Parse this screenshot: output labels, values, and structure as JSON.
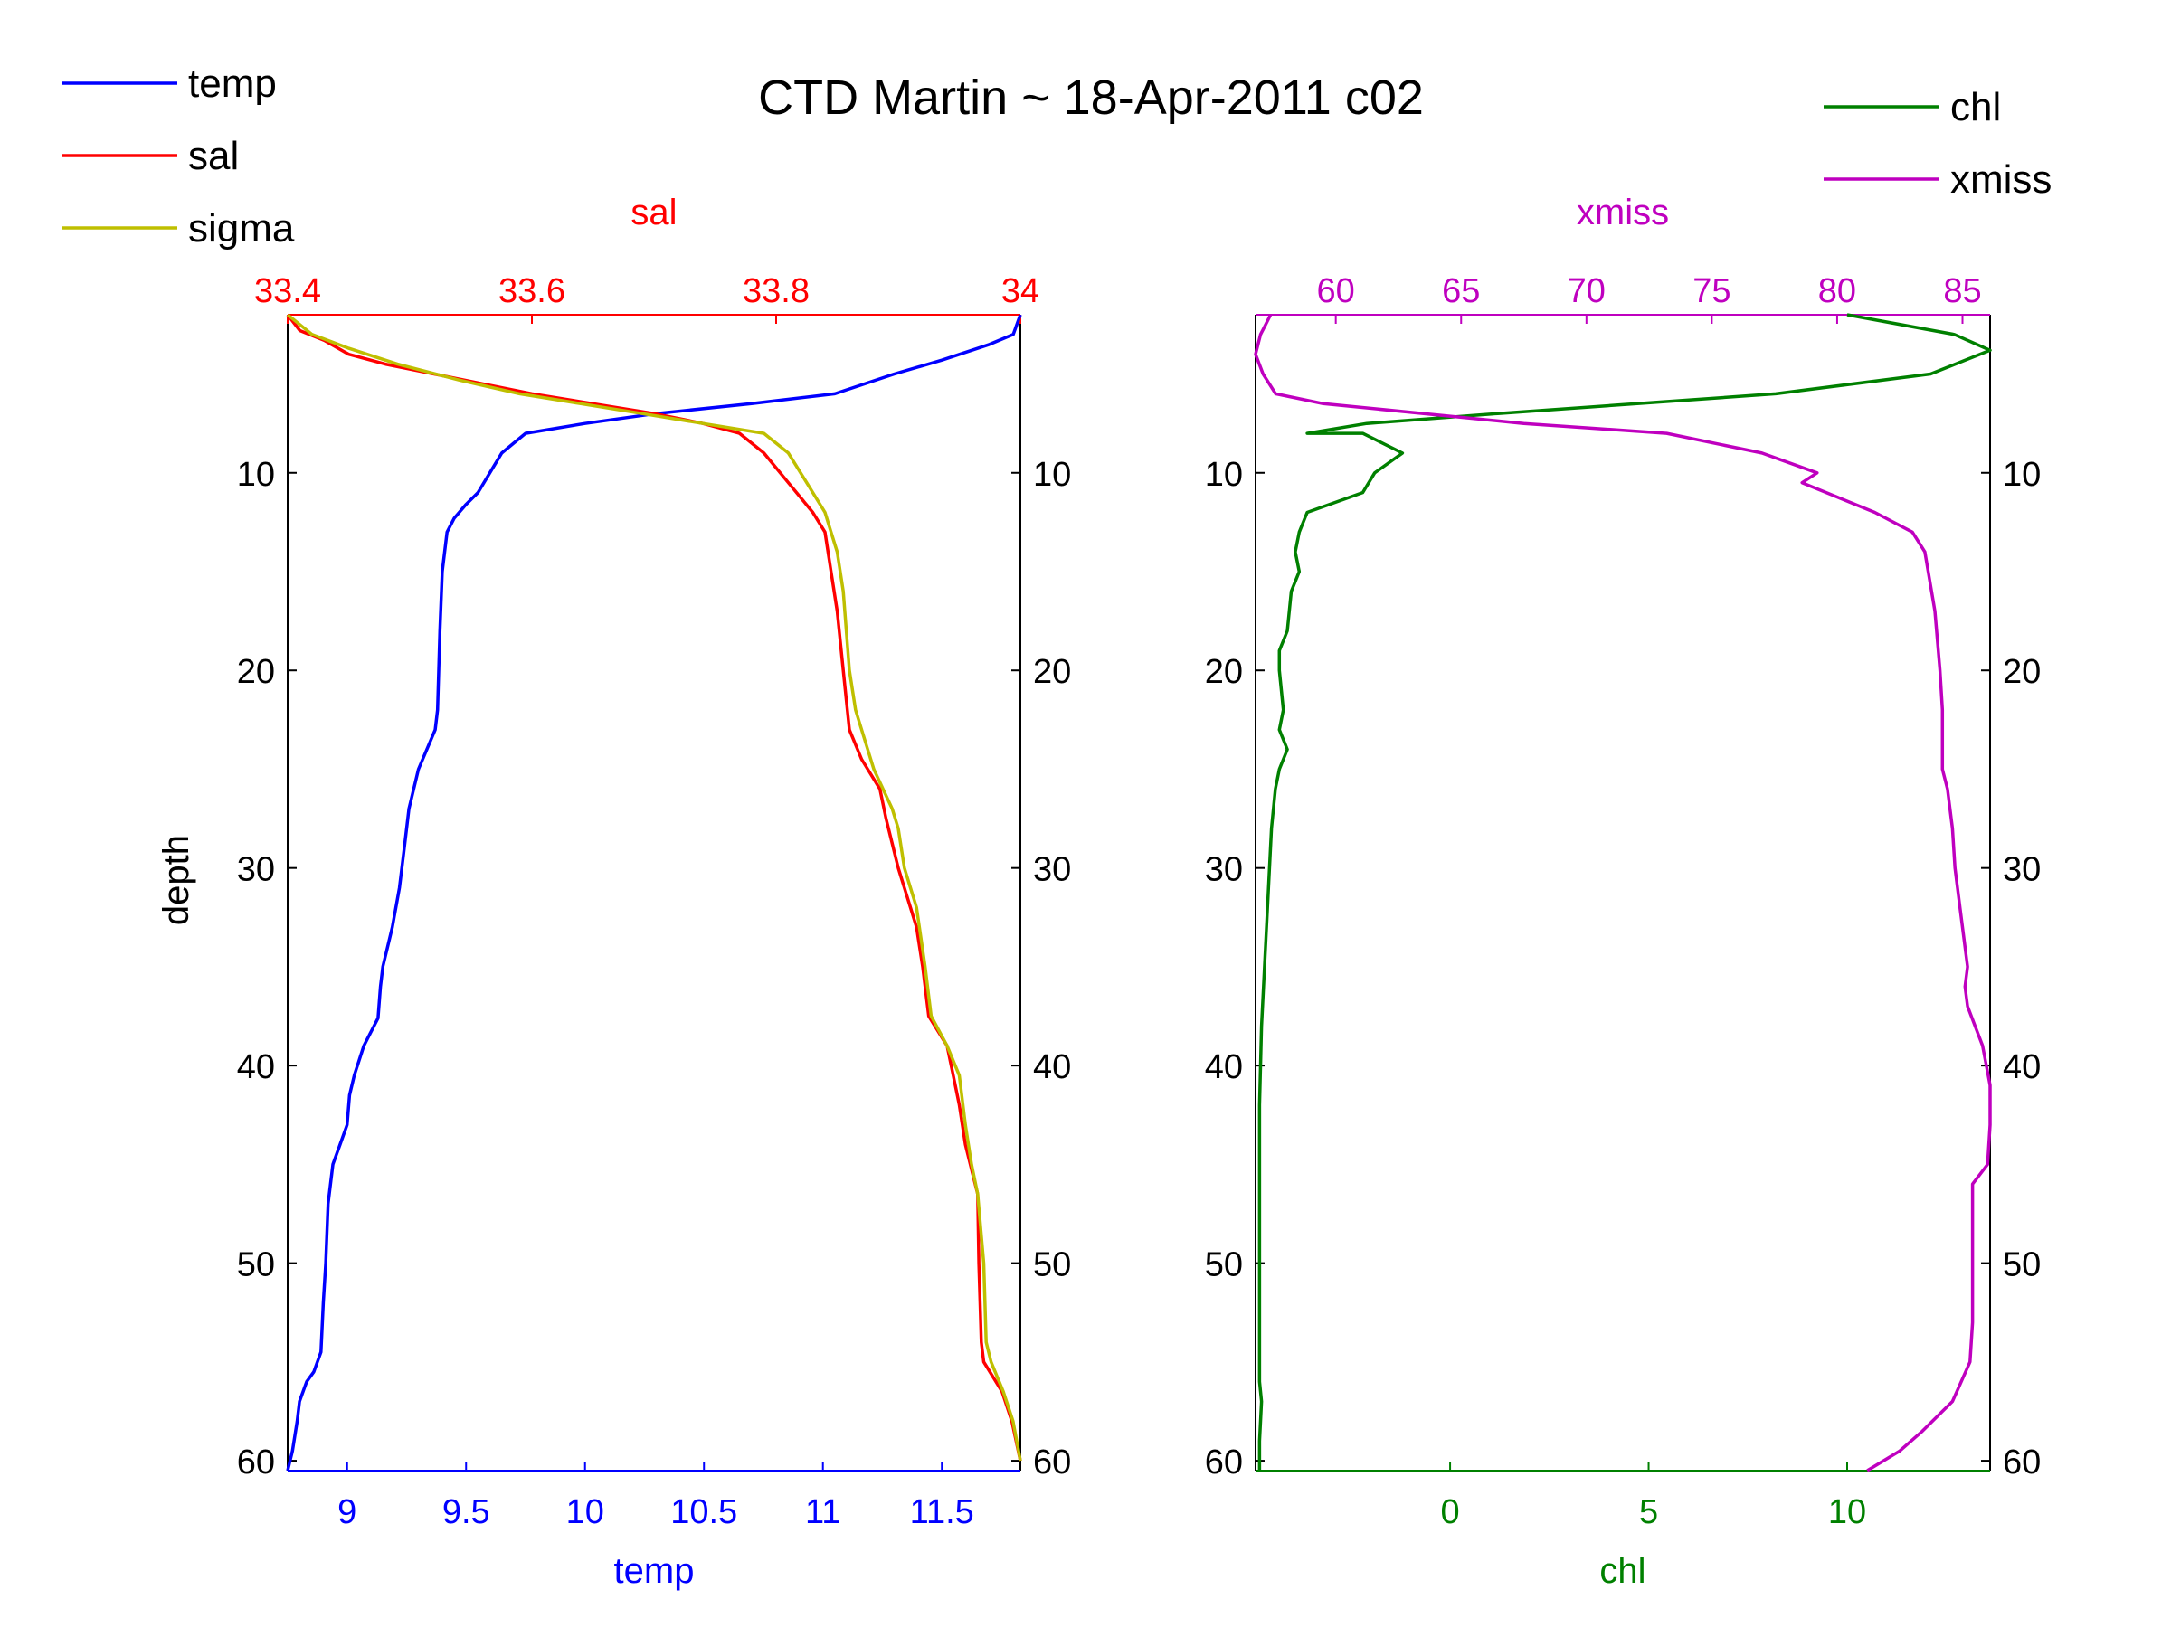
{
  "title": "CTD Martin ~ 18-Apr-2011 c02",
  "colors": {
    "temp": "#0000ff",
    "sal": "#ff0000",
    "sigma": "#bfbf00",
    "chl": "#008000",
    "xmiss": "#bf00bf",
    "axis": "#000000"
  },
  "chart_data": [
    {
      "type": "line",
      "panel": "left",
      "ylabel": "depth",
      "ylim": [
        2,
        60.5
      ],
      "y_reversed": true,
      "y_ticks": [
        10,
        20,
        30,
        40,
        50,
        60
      ],
      "bottom_axis": {
        "label": "temp",
        "range": [
          8.75,
          11.83
        ],
        "ticks": [
          9,
          9.5,
          10,
          10.5,
          11,
          11.5
        ],
        "tick_labels": [
          "9",
          "9.5",
          "10",
          "10.5",
          "11",
          "11.5"
        ]
      },
      "top_axis": {
        "label": "sal",
        "range": [
          33.4,
          34.0
        ],
        "ticks": [
          33.4,
          33.6,
          33.8,
          34.0
        ],
        "tick_labels": [
          "33.4",
          "33.6",
          "33.8",
          "34"
        ]
      },
      "legend": {
        "position": "top-left",
        "entries": [
          "temp",
          "sal",
          "sigma"
        ]
      },
      "series": [
        {
          "name": "temp",
          "axis": "bottom",
          "points": [
            [
              11.83,
              2
            ],
            [
              11.8,
              3
            ],
            [
              11.7,
              3.5
            ],
            [
              11.5,
              4.3
            ],
            [
              11.3,
              5
            ],
            [
              11.05,
              6
            ],
            [
              10.7,
              6.5
            ],
            [
              10.3,
              7
            ],
            [
              10.0,
              7.5
            ],
            [
              9.75,
              8
            ],
            [
              9.7,
              8.5
            ],
            [
              9.65,
              9
            ],
            [
              9.6,
              10
            ],
            [
              9.55,
              11
            ],
            [
              9.5,
              11.6
            ],
            [
              9.45,
              12.3
            ],
            [
              9.42,
              13
            ],
            [
              9.4,
              15
            ],
            [
              9.39,
              18
            ],
            [
              9.38,
              22
            ],
            [
              9.37,
              23
            ],
            [
              9.3,
              25
            ],
            [
              9.26,
              27
            ],
            [
              9.24,
              29
            ],
            [
              9.22,
              31
            ],
            [
              9.19,
              33
            ],
            [
              9.15,
              35
            ],
            [
              9.14,
              36
            ],
            [
              9.13,
              37.6
            ],
            [
              9.07,
              39
            ],
            [
              9.03,
              40.5
            ],
            [
              9.01,
              41.5
            ],
            [
              9.0,
              43
            ],
            [
              8.97,
              44
            ],
            [
              8.94,
              45
            ],
            [
              8.92,
              47
            ],
            [
              8.91,
              50
            ],
            [
              8.9,
              52
            ],
            [
              8.89,
              54.5
            ],
            [
              8.86,
              55.5
            ],
            [
              8.83,
              56
            ],
            [
              8.8,
              57
            ],
            [
              8.79,
              58
            ],
            [
              8.77,
              59.5
            ],
            [
              8.75,
              60.5
            ]
          ]
        },
        {
          "name": "sal",
          "axis": "top",
          "points": [
            [
              33.4,
              2
            ],
            [
              33.41,
              2.8
            ],
            [
              33.43,
              3.3
            ],
            [
              33.45,
              4
            ],
            [
              33.48,
              4.5
            ],
            [
              33.52,
              5
            ],
            [
              33.56,
              5.5
            ],
            [
              33.6,
              6
            ],
            [
              33.65,
              6.5
            ],
            [
              33.7,
              7
            ],
            [
              33.74,
              7.5
            ],
            [
              33.77,
              8
            ],
            [
              33.79,
              9
            ],
            [
              33.81,
              10.5
            ],
            [
              33.83,
              12
            ],
            [
              33.84,
              13
            ],
            [
              33.845,
              15
            ],
            [
              33.85,
              17
            ],
            [
              33.855,
              20
            ],
            [
              33.86,
              23
            ],
            [
              33.87,
              24.5
            ],
            [
              33.885,
              26
            ],
            [
              33.89,
              27.5
            ],
            [
              33.9,
              30
            ],
            [
              33.91,
              32
            ],
            [
              33.915,
              33
            ],
            [
              33.92,
              35
            ],
            [
              33.925,
              37.5
            ],
            [
              33.94,
              39
            ],
            [
              33.945,
              40.5
            ],
            [
              33.95,
              42
            ],
            [
              33.955,
              44
            ],
            [
              33.965,
              46.5
            ],
            [
              33.966,
              50
            ],
            [
              33.968,
              54
            ],
            [
              33.97,
              55
            ],
            [
              33.975,
              55.5
            ],
            [
              33.985,
              56.5
            ],
            [
              33.993,
              58
            ],
            [
              34.0,
              60
            ]
          ]
        },
        {
          "name": "sigma",
          "axis": "top",
          "points": [
            [
              33.4,
              2
            ],
            [
              33.42,
              3
            ],
            [
              33.45,
              3.7
            ],
            [
              33.49,
              4.5
            ],
            [
              33.54,
              5.3
            ],
            [
              33.59,
              6
            ],
            [
              33.64,
              6.5
            ],
            [
              33.69,
              7
            ],
            [
              33.74,
              7.5
            ],
            [
              33.79,
              8
            ],
            [
              33.81,
              9
            ],
            [
              33.825,
              10.5
            ],
            [
              33.84,
              12
            ],
            [
              33.845,
              13
            ],
            [
              33.85,
              14
            ],
            [
              33.855,
              16
            ],
            [
              33.86,
              20
            ],
            [
              33.865,
              22
            ],
            [
              33.87,
              23
            ],
            [
              33.88,
              25
            ],
            [
              33.895,
              27
            ],
            [
              33.9,
              28
            ],
            [
              33.905,
              30
            ],
            [
              33.915,
              32
            ],
            [
              33.922,
              35
            ],
            [
              33.927,
              37.5
            ],
            [
              33.94,
              39
            ],
            [
              33.95,
              40.5
            ],
            [
              33.955,
              43
            ],
            [
              33.96,
              45
            ],
            [
              33.965,
              46.5
            ],
            [
              33.97,
              50
            ],
            [
              33.972,
              54
            ],
            [
              33.976,
              55
            ],
            [
              33.986,
              56.5
            ],
            [
              33.994,
              58
            ],
            [
              34.0,
              60
            ]
          ]
        }
      ]
    },
    {
      "type": "line",
      "panel": "right",
      "ylabel": "",
      "ylim": [
        2,
        60.5
      ],
      "y_reversed": true,
      "y_ticks": [
        10,
        20,
        30,
        40,
        50,
        60
      ],
      "bottom_axis": {
        "label": "chl",
        "range": [
          -4.9,
          13.6
        ],
        "ticks": [
          0,
          5,
          10
        ],
        "tick_labels": [
          "0",
          "5",
          "10"
        ]
      },
      "top_axis": {
        "label": "xmiss",
        "range": [
          56.8,
          86.1
        ],
        "ticks": [
          60,
          65,
          70,
          75,
          80,
          85
        ],
        "tick_labels": [
          "60",
          "65",
          "70",
          "75",
          "80",
          "85"
        ]
      },
      "legend": {
        "position": "top-right",
        "entries": [
          "chl",
          "xmiss"
        ]
      },
      "series": [
        {
          "name": "chl",
          "axis": "bottom",
          "points": [
            [
              10,
              2
            ],
            [
              12.7,
              3
            ],
            [
              13.6,
              3.8
            ],
            [
              12.1,
              5
            ],
            [
              8.2,
              6
            ],
            [
              1.2,
              7
            ],
            [
              -2.1,
              7.5
            ],
            [
              -3.6,
              8
            ],
            [
              -2.2,
              8
            ],
            [
              -1.2,
              9
            ],
            [
              -1.9,
              10
            ],
            [
              -2.2,
              11
            ],
            [
              -3.6,
              12
            ],
            [
              -3.8,
              13
            ],
            [
              -3.9,
              14
            ],
            [
              -3.8,
              15
            ],
            [
              -4.0,
              16
            ],
            [
              -4.1,
              18
            ],
            [
              -4.3,
              19
            ],
            [
              -4.3,
              20
            ],
            [
              -4.2,
              22
            ],
            [
              -4.3,
              23
            ],
            [
              -4.1,
              24
            ],
            [
              -4.3,
              25
            ],
            [
              -4.4,
              26
            ],
            [
              -4.5,
              28
            ],
            [
              -4.6,
              32
            ],
            [
              -4.7,
              36
            ],
            [
              -4.75,
              38
            ],
            [
              -4.8,
              42
            ],
            [
              -4.8,
              50
            ],
            [
              -4.8,
              56
            ],
            [
              -4.75,
              57
            ],
            [
              -4.8,
              59
            ],
            [
              -4.8,
              60.5
            ]
          ]
        },
        {
          "name": "xmiss",
          "axis": "top",
          "points": [
            [
              57.4,
              2
            ],
            [
              57.2,
              2.5
            ],
            [
              57.0,
              3
            ],
            [
              56.8,
              4
            ],
            [
              57.1,
              5
            ],
            [
              57.6,
              6
            ],
            [
              59.5,
              6.5
            ],
            [
              63.5,
              7
            ],
            [
              67.5,
              7.5
            ],
            [
              73.2,
              8
            ],
            [
              77.0,
              9
            ],
            [
              79.2,
              10
            ],
            [
              78.6,
              10.5
            ],
            [
              81.5,
              12
            ],
            [
              83,
              13
            ],
            [
              83.5,
              14
            ],
            [
              83.9,
              17
            ],
            [
              84.1,
              20
            ],
            [
              84.2,
              22
            ],
            [
              84.2,
              25
            ],
            [
              84.4,
              26
            ],
            [
              84.6,
              28
            ],
            [
              84.7,
              30
            ],
            [
              84.9,
              32
            ],
            [
              85.1,
              34
            ],
            [
              85.2,
              35
            ],
            [
              85.1,
              36
            ],
            [
              85.2,
              37
            ],
            [
              85.8,
              39
            ],
            [
              86.1,
              41
            ],
            [
              86.1,
              43
            ],
            [
              86.0,
              45
            ],
            [
              85.4,
              46
            ],
            [
              85.4,
              50
            ],
            [
              85.4,
              53
            ],
            [
              85.3,
              55
            ],
            [
              84.6,
              57
            ],
            [
              83.4,
              58.5
            ],
            [
              82.5,
              59.5
            ],
            [
              81.2,
              60.5
            ]
          ]
        }
      ]
    }
  ]
}
